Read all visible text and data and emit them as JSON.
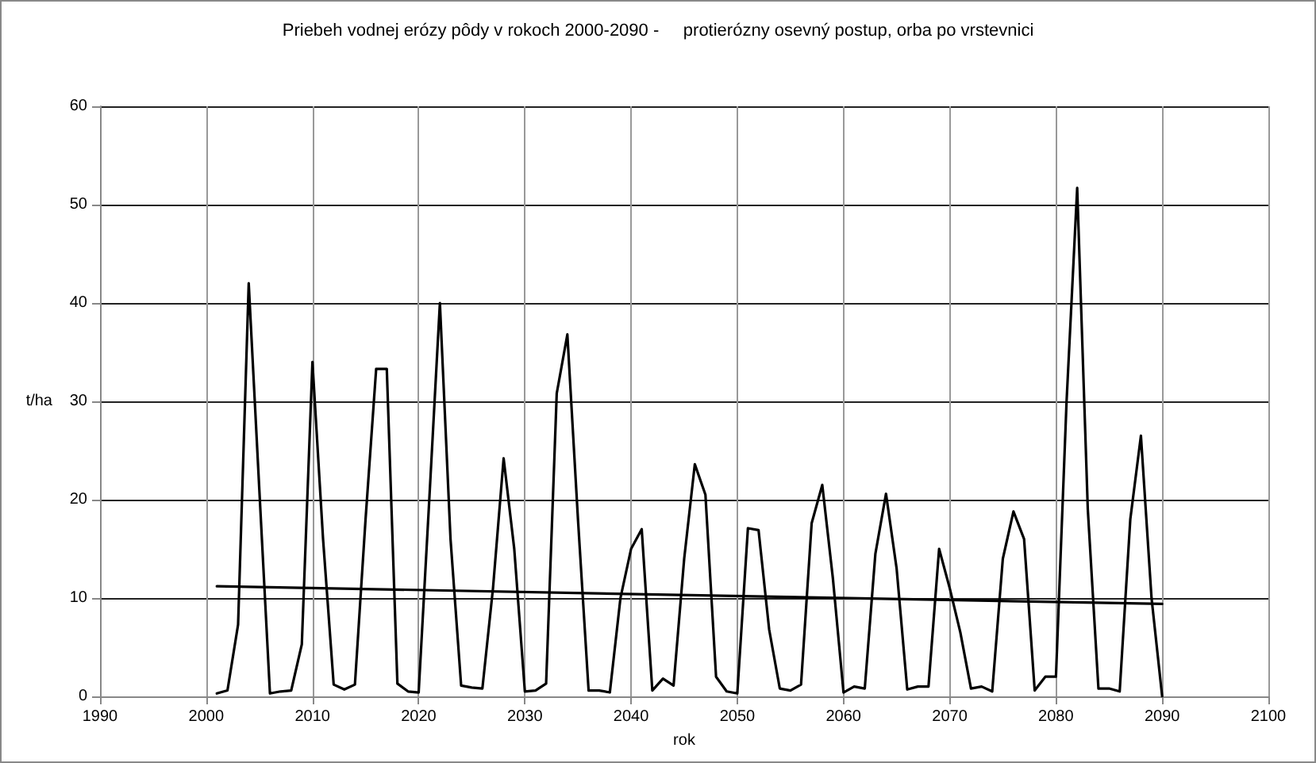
{
  "chart_data": {
    "type": "line",
    "title": "Priebeh vodnej erózy pôdy v rokoch 2000-2090 -     protierózny osevný postup, orba po vrstevnici",
    "xlabel": "rok",
    "ylabel": "t/ha",
    "xlim": [
      1990,
      2100
    ],
    "xticks": [
      1990,
      2000,
      2010,
      2020,
      2030,
      2040,
      2050,
      2060,
      2070,
      2080,
      2090,
      2100
    ],
    "ylim": [
      0,
      60
    ],
    "yticks": [
      0,
      10,
      20,
      30,
      40,
      50,
      60
    ],
    "grid": true,
    "marker": "none",
    "line_style": "solid",
    "series": [
      {
        "color": "#000000",
        "x": [
          2001,
          2002,
          2003,
          2004,
          2005,
          2006,
          2007,
          2008,
          2009,
          2010,
          2011,
          2012,
          2013,
          2014,
          2015,
          2016,
          2017,
          2018,
          2019,
          2020,
          2021,
          2022,
          2023,
          2024,
          2025,
          2026,
          2027,
          2028,
          2029,
          2030,
          2031,
          2032,
          2033,
          2034,
          2035,
          2036,
          2037,
          2038,
          2039,
          2040,
          2041,
          2042,
          2043,
          2044,
          2045,
          2046,
          2047,
          2048,
          2049,
          2050,
          2051,
          2052,
          2053,
          2054,
          2055,
          2056,
          2057,
          2058,
          2059,
          2060,
          2061,
          2062,
          2063,
          2064,
          2065,
          2066,
          2067,
          2068,
          2069,
          2070,
          2071,
          2072,
          2073,
          2074,
          2075,
          2076,
          2077,
          2078,
          2079,
          2080,
          2081,
          2082,
          2083,
          2084,
          2085,
          2086,
          2087,
          2088,
          2089,
          2090
        ],
        "values": [
          0.3,
          0.6,
          7.3,
          42,
          21,
          0.3,
          0.5,
          0.6,
          5.3,
          34,
          16,
          1.2,
          0.7,
          1.2,
          18,
          33.3,
          33.3,
          1.3,
          0.5,
          0.4,
          20,
          40,
          16,
          1.1,
          0.9,
          0.8,
          11,
          24.2,
          15,
          0.5,
          0.6,
          1.3,
          30.8,
          36.8,
          18,
          0.6,
          0.6,
          0.4,
          10,
          15,
          17,
          0.6,
          1.8,
          1.1,
          14,
          23.6,
          20.5,
          2,
          0.5,
          0.3,
          17.1,
          16.9,
          6.8,
          0.8,
          0.6,
          1.2,
          17.6,
          21.5,
          12,
          0.4,
          1,
          0.8,
          14.5,
          20.6,
          13,
          0.7,
          1,
          1,
          15,
          11,
          6.5,
          0.8,
          1,
          0.5,
          14,
          18.8,
          16,
          0.6,
          2,
          2,
          30,
          51.7,
          19,
          0.8,
          0.8,
          0.5,
          18,
          26.5,
          10,
          0
        ]
      },
      {
        "color": "#000000",
        "x": [
          2001,
          2090
        ],
        "values": [
          11.2,
          9.4
        ]
      }
    ]
  }
}
